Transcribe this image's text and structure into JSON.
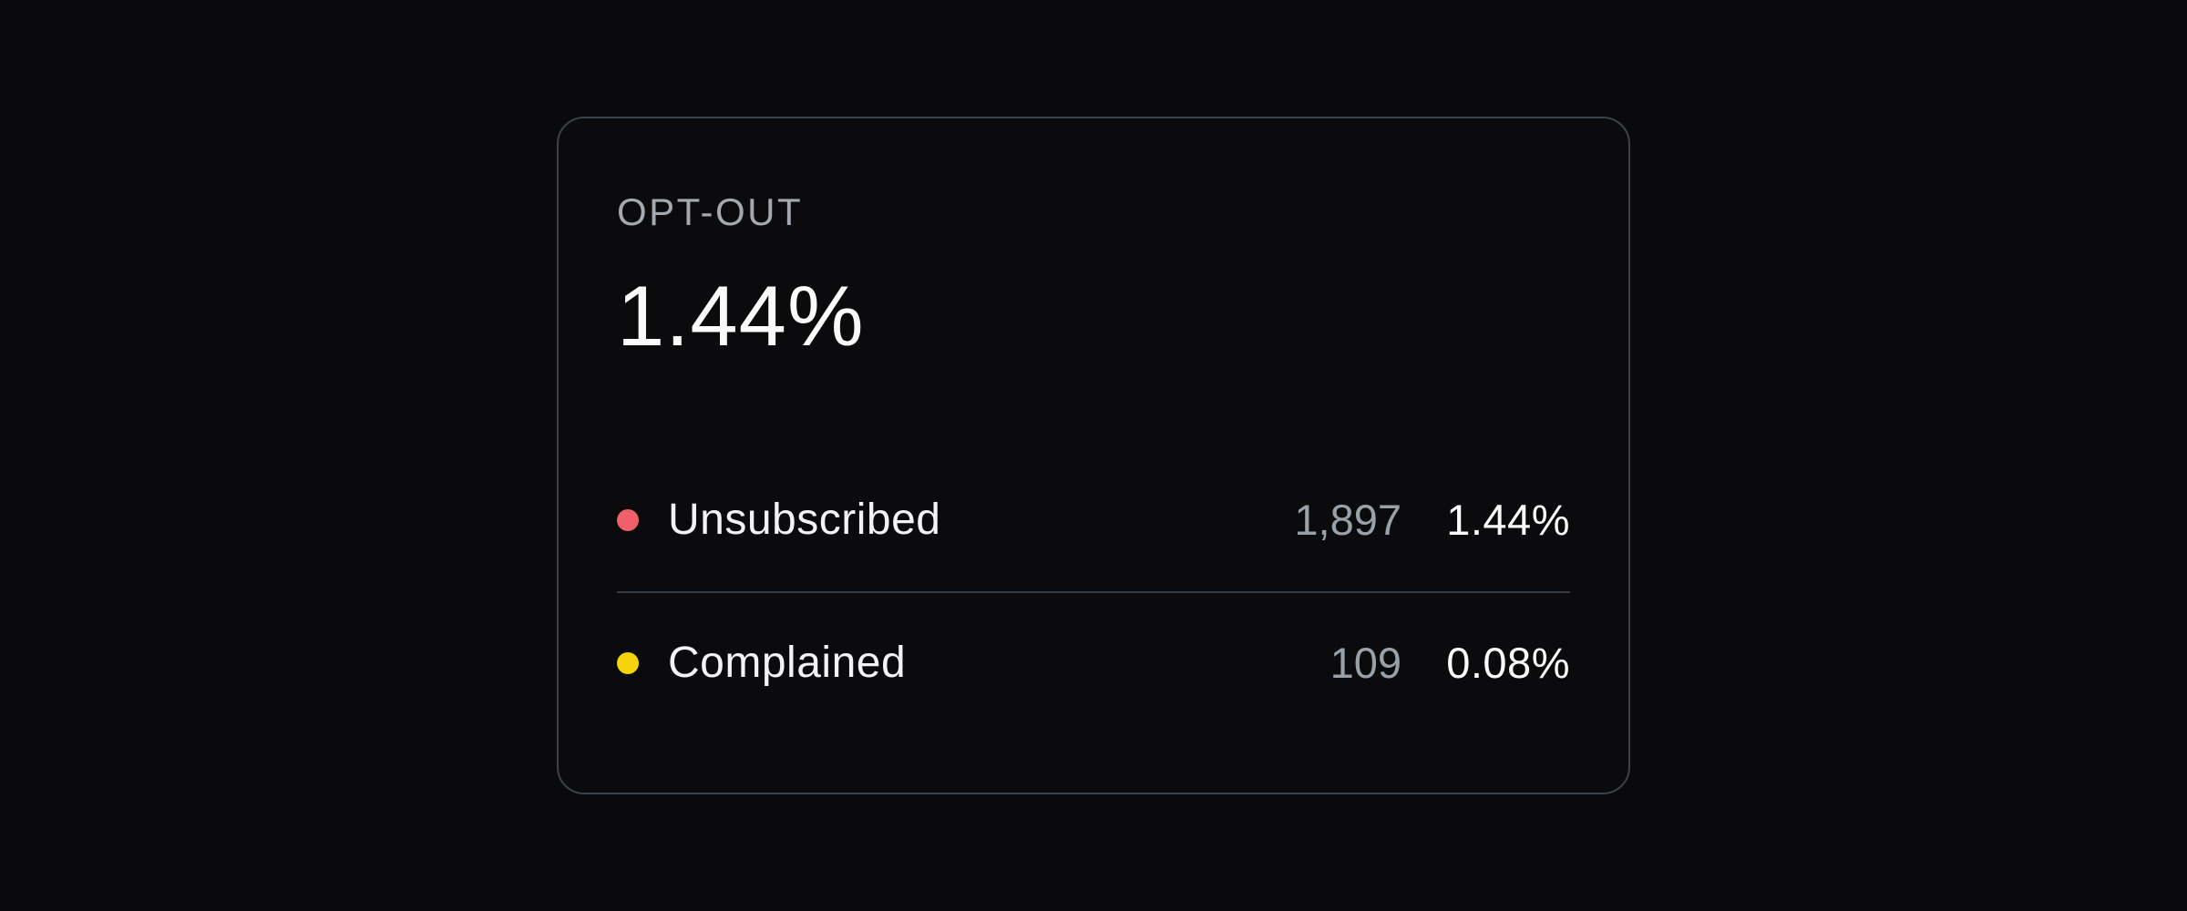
{
  "card": {
    "label": "OPT-OUT",
    "value": "1.44%",
    "rows": [
      {
        "name": "Unsubscribed",
        "count": "1,897",
        "percent": "1.44%",
        "dot_color": "#f0606a"
      },
      {
        "name": "Complained",
        "count": "109",
        "percent": "0.08%",
        "dot_color": "#f6d30d"
      }
    ],
    "colors": {
      "page_bg": "#0a0a0c",
      "card_bg": "#0b0b0d",
      "border": "#3a424b",
      "divider": "#343b43",
      "label_text": "#a4a9b0",
      "value_text": "#fafafa",
      "row_text": "#f2f3f5",
      "count_text": "#9aa0a7"
    }
  }
}
